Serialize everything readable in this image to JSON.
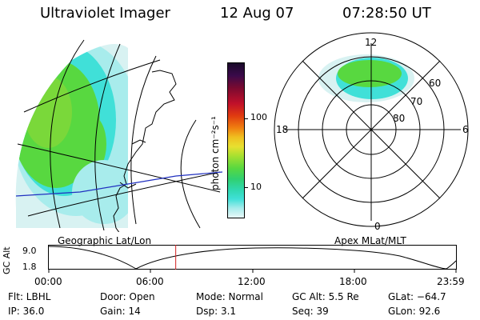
{
  "header": {
    "title": "Ultraviolet Imager",
    "date": "12 Aug 07",
    "time": "07:28:50 UT"
  },
  "panels": {
    "left_caption": "Geographic Lat/Lon",
    "right_caption": "Apex MLat/MLT"
  },
  "colorbar": {
    "unit_label": "photon cm⁻²s⁻¹",
    "ticks": [
      "100",
      "10"
    ],
    "colors": [
      "#1a0a2a",
      "#3a0a4a",
      "#7a0a30",
      "#c0102a",
      "#e03a10",
      "#f08010",
      "#f0c020",
      "#e8e030",
      "#a8e030",
      "#58d840",
      "#30d070",
      "#30d8b0",
      "#40e0d8",
      "#a8ecec",
      "#e8f8f8"
    ]
  },
  "polar": {
    "mlt_labels": [
      "12",
      "18",
      "6",
      "0"
    ],
    "lat_labels": [
      "60",
      "70",
      "80"
    ]
  },
  "altitude_plot": {
    "ylabel": "GC Alt",
    "yticks": [
      "9.0",
      "1.8"
    ],
    "xticks": [
      "00:00",
      "06:00",
      "12:00",
      "18:00",
      "23:59"
    ],
    "marker_fraction": 0.3117,
    "colors": {
      "trace": "#000000",
      "marker": "#d02020"
    }
  },
  "status": {
    "flt": "Flt: LBHL",
    "ip": "IP: 36.0",
    "door": "Door: Open",
    "gain": "Gain: 14",
    "mode": "Mode: Normal",
    "dsp": "Dsp:     3.1",
    "gcalt": "GC Alt: 5.5 Re",
    "seq": "Seq: 39",
    "glat": "GLat: −64.7",
    "glon": "GLon:  92.6"
  },
  "colors": {
    "coastline": "#000000",
    "terminator": "#2030c0"
  }
}
